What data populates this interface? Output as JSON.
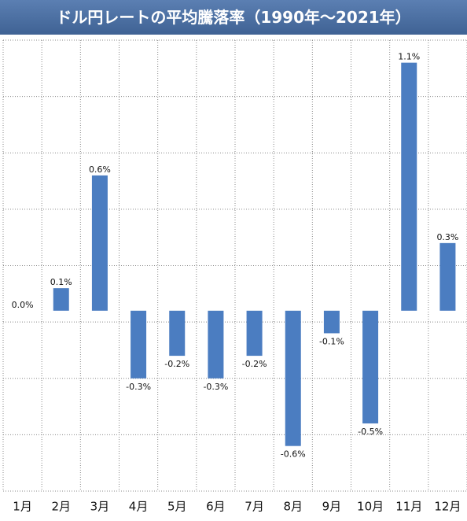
{
  "title": "ドル円レートの平均騰落率（1990年〜2021年）",
  "colors": {
    "bar": "#4b7dc1",
    "title_bg": "#4a6ea3",
    "grid": "#888888"
  },
  "chart_data": {
    "type": "bar",
    "title": "ドル円レートの平均騰落率（1990年〜2021年）",
    "categories": [
      "1月",
      "2月",
      "3月",
      "4月",
      "5月",
      "6月",
      "7月",
      "8月",
      "9月",
      "10月",
      "11月",
      "12月"
    ],
    "values": [
      0.0,
      0.1,
      0.6,
      -0.3,
      -0.2,
      -0.3,
      -0.2,
      -0.6,
      -0.1,
      -0.5,
      1.1,
      0.3
    ],
    "data_labels": [
      "0.0%",
      "0.1%",
      "0.6%",
      "-0.3%",
      "-0.2%",
      "-0.3%",
      "-0.2%",
      "-0.6%",
      "-0.1%",
      "-0.5%",
      "1.1%",
      "0.3%"
    ],
    "ylim": [
      -0.8,
      1.2
    ],
    "grid": true,
    "xlabel": "",
    "ylabel": ""
  }
}
